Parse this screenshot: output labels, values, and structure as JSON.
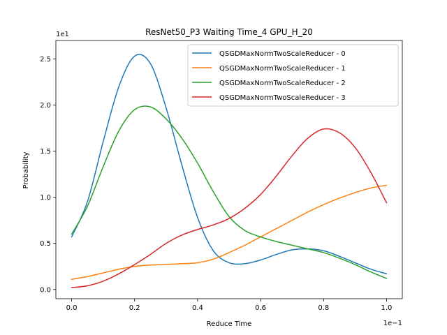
{
  "chart_data": {
    "type": "line",
    "title": "ResNet50_P3 Waiting Time_4 GPU_H_20",
    "xlabel": "Reduce Time",
    "ylabel": "Probability",
    "x_offset_text": "1e−1",
    "y_offset_text": "1e1",
    "xlim": [
      -0.05,
      1.05
    ],
    "ylim": [
      -0.1,
      2.7
    ],
    "x_ticks": [
      0.0,
      0.2,
      0.4,
      0.6,
      0.8,
      1.0
    ],
    "x_tick_labels": [
      "0.0",
      "0.2",
      "0.4",
      "0.6",
      "0.8",
      "1.0"
    ],
    "y_ticks": [
      0.0,
      0.5,
      1.0,
      1.5,
      2.0,
      2.5
    ],
    "y_tick_labels": [
      "0.0",
      "0.5",
      "1.0",
      "1.5",
      "2.0",
      "2.5"
    ],
    "grid": false,
    "legend_position": "top-right",
    "x": [
      0.0,
      0.05,
      0.1,
      0.15,
      0.2,
      0.25,
      0.3,
      0.35,
      0.4,
      0.45,
      0.5,
      0.55,
      0.6,
      0.65,
      0.7,
      0.75,
      0.8,
      0.85,
      0.9,
      0.95,
      1.0
    ],
    "series": [
      {
        "name": "QSGDMaxNormTwoScaleReducer - 0",
        "color": "#1f77b4",
        "values": [
          0.57,
          0.95,
          1.6,
          2.2,
          2.53,
          2.45,
          1.97,
          1.35,
          0.78,
          0.42,
          0.29,
          0.28,
          0.32,
          0.38,
          0.43,
          0.44,
          0.42,
          0.36,
          0.29,
          0.22,
          0.17
        ]
      },
      {
        "name": "QSGDMaxNormTwoScaleReducer - 1",
        "color": "#ff7f0e",
        "values": [
          0.11,
          0.14,
          0.18,
          0.22,
          0.25,
          0.265,
          0.27,
          0.28,
          0.29,
          0.33,
          0.4,
          0.48,
          0.57,
          0.66,
          0.75,
          0.84,
          0.92,
          0.99,
          1.05,
          1.1,
          1.13
        ]
      },
      {
        "name": "QSGDMaxNormTwoScaleReducer - 2",
        "color": "#2ca02c",
        "values": [
          0.6,
          0.9,
          1.33,
          1.72,
          1.95,
          1.98,
          1.85,
          1.64,
          1.37,
          1.06,
          0.79,
          0.64,
          0.57,
          0.52,
          0.48,
          0.44,
          0.4,
          0.34,
          0.27,
          0.19,
          0.12
        ]
      },
      {
        "name": "QSGDMaxNormTwoScaleReducer - 3",
        "color": "#d62728",
        "values": [
          0.02,
          0.04,
          0.09,
          0.17,
          0.27,
          0.38,
          0.5,
          0.59,
          0.65,
          0.7,
          0.77,
          0.88,
          1.03,
          1.23,
          1.45,
          1.64,
          1.74,
          1.7,
          1.54,
          1.27,
          0.94
        ]
      }
    ]
  }
}
